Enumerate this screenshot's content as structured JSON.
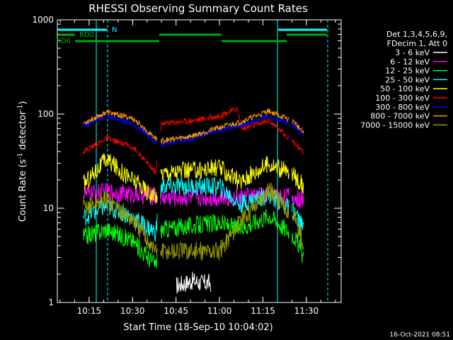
{
  "chart_data": {
    "type": "line",
    "title": "RHESSI Observing Summary Count Rates",
    "xlabel": "Start Time (18-Sep-10 10:04:02)",
    "ylabel_main": "Count Rate (s",
    "ylabel_sup1": "-1",
    "ylabel_mid": " detector",
    "ylabel_sup2": "-1",
    "ylabel_end": ")",
    "y_scale": "log",
    "ylim": [
      1,
      1000
    ],
    "xlim_minutes": [
      10.067,
      10.0
    ],
    "x_range": [
      "10:04:02",
      "11:42:00"
    ],
    "x_ticks": [
      "10:15",
      "10:30",
      "10:45",
      "11:00",
      "11:15",
      "11:30"
    ],
    "y_ticks": [
      "1",
      "10",
      "100",
      "1000"
    ],
    "legend_header": [
      "Det 1,3,4,5,6,9,",
      "FDecim 1, Att 0"
    ],
    "footer_date": "16-Oct-2021 08:51",
    "status_labels": [
      "N",
      "RD0",
      "RD6"
    ],
    "series": [
      {
        "name": "3 - 6 keV",
        "color": "#ffffff",
        "x": [
          "10:45:00",
          "10:48:00",
          "10:51:00",
          "10:54:00",
          "10:57:00"
        ],
        "y": [
          1.5,
          1.6,
          1.7,
          1.6,
          1.6
        ]
      },
      {
        "name": "6 - 12 keV",
        "color": "#ff00ff",
        "x": [
          "10:13:00",
          "10:21:00",
          "10:30:00",
          "10:38:00",
          "10:40:00",
          "10:50:00",
          "11:00:00",
          "11:07:00",
          "11:17:00",
          "11:26:00",
          "11:29:00"
        ],
        "y": [
          14,
          15,
          14,
          13.5,
          13,
          13,
          13,
          13,
          14,
          13,
          12
        ]
      },
      {
        "name": "12 - 25 keV",
        "color": "#00ff00",
        "x": [
          "10:13:00",
          "10:21:00",
          "10:30:00",
          "10:38:00",
          "10:40:00",
          "10:50:00",
          "11:00:00",
          "11:07:00",
          "11:17:00",
          "11:26:00",
          "11:29:00"
        ],
        "y": [
          5,
          6,
          4.5,
          2.5,
          6,
          6.5,
          7,
          6,
          8.5,
          5,
          3
        ]
      },
      {
        "name": "25 - 50 keV",
        "color": "#00ffff",
        "x": [
          "10:13:00",
          "10:21:00",
          "10:30:00",
          "10:38:00",
          "10:40:00",
          "10:50:00",
          "11:00:00",
          "11:07:00",
          "11:17:00",
          "11:26:00",
          "11:29:00"
        ],
        "y": [
          8,
          10.5,
          8,
          5.5,
          17,
          17,
          17,
          11,
          14,
          9,
          6
        ]
      },
      {
        "name": "50 - 100 keV",
        "color": "#ffff00",
        "x": [
          "10:13:00",
          "10:21:00",
          "10:30:00",
          "10:38:00",
          "10:40:00",
          "10:50:00",
          "11:00:00",
          "11:07:00",
          "11:17:00",
          "11:26:00",
          "11:29:00"
        ],
        "y": [
          18,
          33,
          20,
          13,
          24,
          25,
          27,
          19,
          30,
          22,
          17
        ]
      },
      {
        "name": "100 - 300 keV",
        "color": "#ff0000",
        "x": [
          "10:13:00",
          "10:21:00",
          "10:30:00",
          "10:38:00",
          "10:40:00",
          "10:50:00",
          "11:00:00",
          "11:06:00",
          "11:08:00",
          "11:17:00",
          "11:26:00",
          "11:29:00"
        ],
        "y": [
          40,
          55,
          45,
          24,
          80,
          85,
          95,
          115,
          70,
          85,
          50,
          38
        ]
      },
      {
        "name": "300 - 800 keV",
        "color": "#0000ff",
        "x": [
          "10:13:00",
          "10:21:00",
          "10:30:00",
          "10:38:00",
          "10:40:00",
          "10:50:00",
          "11:00:00",
          "11:07:00",
          "11:17:00",
          "11:26:00",
          "11:29:00"
        ],
        "y": [
          75,
          95,
          80,
          50,
          48,
          55,
          68,
          75,
          95,
          75,
          58
        ]
      },
      {
        "name": "800 - 7000 keV",
        "color": "#ff9900",
        "x": [
          "10:13:00",
          "10:21:00",
          "10:30:00",
          "10:38:00",
          "10:40:00",
          "10:50:00",
          "11:00:00",
          "11:07:00",
          "11:17:00",
          "11:26:00",
          "11:29:00"
        ],
        "y": [
          80,
          105,
          90,
          55,
          52,
          58,
          72,
          82,
          108,
          82,
          62
        ]
      },
      {
        "name": "7000 - 15000 keV",
        "color": "#999900",
        "x": [
          "10:13:00",
          "10:21:00",
          "10:30:00",
          "10:38:00",
          "10:40:00",
          "10:50:00",
          "11:00:00",
          "11:07:00",
          "11:17:00",
          "11:26:00",
          "11:29:00"
        ],
        "y": [
          10,
          12.5,
          7.5,
          3.5,
          3.5,
          3.5,
          3.5,
          7,
          16,
          8,
          4
        ]
      }
    ]
  }
}
